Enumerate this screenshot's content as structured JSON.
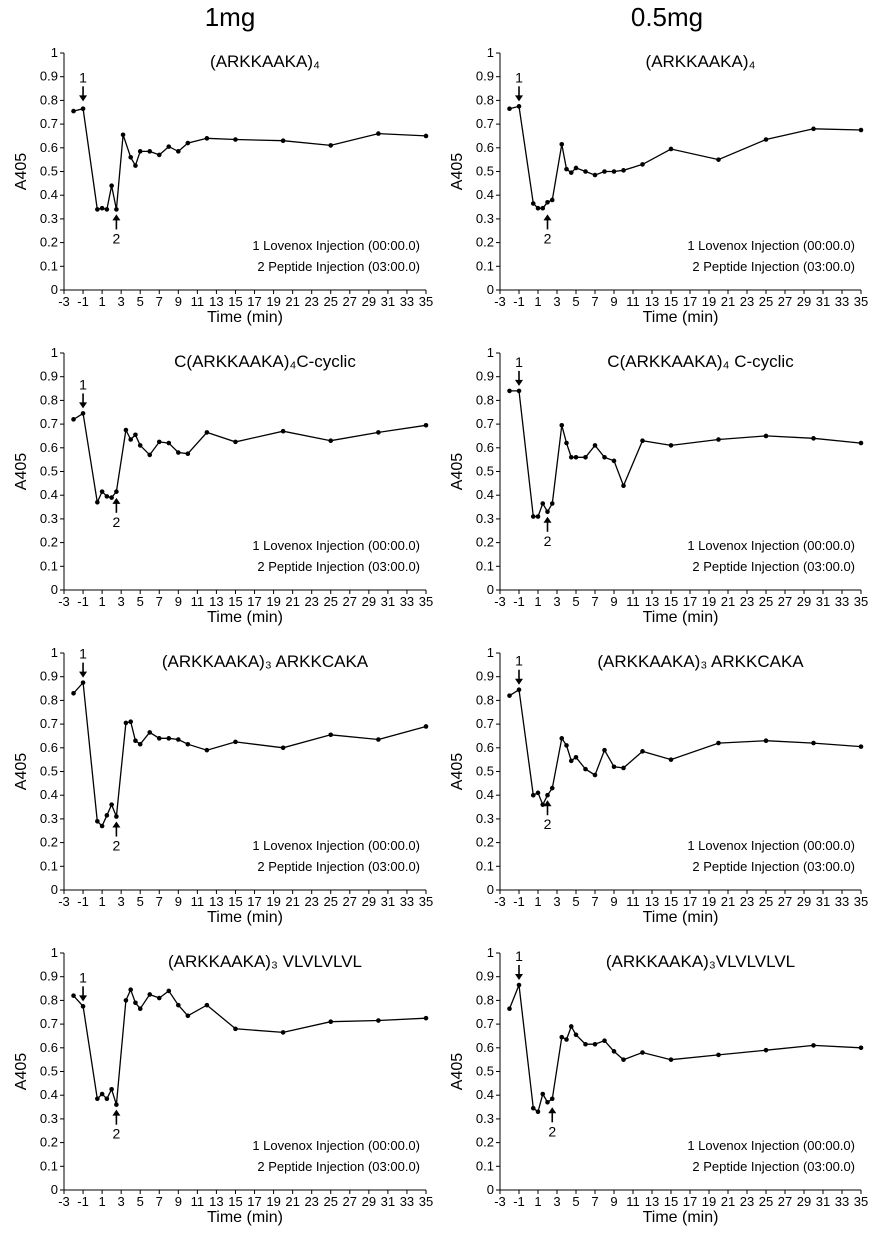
{
  "column_headers": [
    "1mg",
    "0.5mg"
  ],
  "chart_data": [
    {
      "type": "line",
      "title": "(ARKKAAKA)₄",
      "xlabel": "Time (min)",
      "ylabel": "A405",
      "xlim": [
        -3,
        35
      ],
      "ylim": [
        0,
        1.0
      ],
      "x_ticks": [
        -3,
        -1,
        1,
        3,
        5,
        7,
        9,
        11,
        13,
        15,
        17,
        19,
        21,
        23,
        25,
        27,
        29,
        31,
        33,
        35
      ],
      "y_ticks": [
        0,
        0.1,
        0.2,
        0.3,
        0.4,
        0.5,
        0.6,
        0.7,
        0.8,
        0.9,
        1.0
      ],
      "legend": [
        "1 Lovenox Injection (00:00.0)",
        "2 Peptide Injection (03:00.0)"
      ],
      "annotations": [
        {
          "label": "1",
          "x": -1,
          "y": 0.775,
          "direction": "down"
        },
        {
          "label": "2",
          "x": 2.5,
          "y": 0.34,
          "direction": "up"
        }
      ],
      "series": [
        {
          "x": [
            -2,
            -1,
            0.5,
            1,
            1.5,
            2,
            2.5,
            3.2,
            4,
            4.5,
            5,
            6,
            7,
            8,
            9,
            10,
            12,
            15,
            20,
            25,
            30,
            35
          ],
          "y": [
            0.755,
            0.765,
            0.34,
            0.345,
            0.34,
            0.44,
            0.34,
            0.655,
            0.56,
            0.525,
            0.585,
            0.585,
            0.57,
            0.605,
            0.585,
            0.62,
            0.64,
            0.635,
            0.63,
            0.61,
            0.66,
            0.65
          ]
        }
      ]
    },
    {
      "type": "line",
      "title": "(ARKKAAKA)₄",
      "xlabel": "Time (min)",
      "ylabel": "A405",
      "xlim": [
        -3,
        35
      ],
      "ylim": [
        0,
        1.0
      ],
      "x_ticks": [
        -3,
        -1,
        1,
        3,
        5,
        7,
        9,
        11,
        13,
        15,
        17,
        19,
        21,
        23,
        25,
        27,
        29,
        31,
        33,
        35
      ],
      "y_ticks": [
        0,
        0.1,
        0.2,
        0.3,
        0.4,
        0.5,
        0.6,
        0.7,
        0.8,
        0.9,
        1.0
      ],
      "legend": [
        "1 Lovenox Injection (00:00.0)",
        "2 Peptide Injection (03:00.0)"
      ],
      "annotations": [
        {
          "label": "1",
          "x": -1,
          "y": 0.775,
          "direction": "down"
        },
        {
          "label": "2",
          "x": 2,
          "y": 0.34,
          "direction": "up"
        }
      ],
      "series": [
        {
          "x": [
            -2,
            -1,
            0.5,
            1,
            1.5,
            2,
            2.5,
            3.5,
            4,
            4.5,
            5,
            6,
            7,
            8,
            9,
            10,
            12,
            15,
            20,
            25,
            30,
            35
          ],
          "y": [
            0.765,
            0.775,
            0.365,
            0.345,
            0.345,
            0.37,
            0.38,
            0.615,
            0.51,
            0.495,
            0.515,
            0.5,
            0.485,
            0.5,
            0.5,
            0.505,
            0.53,
            0.595,
            0.55,
            0.635,
            0.68,
            0.675
          ]
        }
      ]
    },
    {
      "type": "line",
      "title": "C(ARKKAAKA)₄C-cyclic",
      "xlabel": "Time (min)",
      "ylabel": "A405",
      "xlim": [
        -3,
        35
      ],
      "ylim": [
        0,
        1.0
      ],
      "x_ticks": [
        -3,
        -1,
        1,
        3,
        5,
        7,
        9,
        11,
        13,
        15,
        17,
        19,
        21,
        23,
        25,
        27,
        29,
        31,
        33,
        35
      ],
      "y_ticks": [
        0,
        0.1,
        0.2,
        0.3,
        0.4,
        0.5,
        0.6,
        0.7,
        0.8,
        0.9,
        1.0
      ],
      "legend": [
        "1 Lovenox Injection (00:00.0)",
        "2 Peptide Injection (03:00.0)"
      ],
      "annotations": [
        {
          "label": "1",
          "x": -1,
          "y": 0.745,
          "direction": "down"
        },
        {
          "label": "2",
          "x": 2.5,
          "y": 0.41,
          "direction": "up"
        }
      ],
      "series": [
        {
          "x": [
            -2,
            -1,
            0.5,
            1,
            1.5,
            2,
            2.5,
            3.5,
            4,
            4.5,
            5,
            6,
            7,
            8,
            9,
            10,
            12,
            15,
            20,
            25,
            30,
            35
          ],
          "y": [
            0.72,
            0.745,
            0.37,
            0.415,
            0.395,
            0.39,
            0.415,
            0.675,
            0.635,
            0.655,
            0.61,
            0.57,
            0.625,
            0.62,
            0.58,
            0.575,
            0.665,
            0.625,
            0.67,
            0.63,
            0.665,
            0.695
          ]
        }
      ]
    },
    {
      "type": "line",
      "title": "C(ARKKAAKA)₄ C-cyclic",
      "xlabel": "Time (min)",
      "ylabel": "A405",
      "xlim": [
        -3,
        35
      ],
      "ylim": [
        0,
        1.0
      ],
      "x_ticks": [
        -3,
        -1,
        1,
        3,
        5,
        7,
        9,
        11,
        13,
        15,
        17,
        19,
        21,
        23,
        25,
        27,
        29,
        31,
        33,
        35
      ],
      "y_ticks": [
        0,
        0.1,
        0.2,
        0.3,
        0.4,
        0.5,
        0.6,
        0.7,
        0.8,
        0.9,
        1.0
      ],
      "legend": [
        "1 Lovenox Injection (00:00.0)",
        "2 Peptide Injection (03:00.0)"
      ],
      "annotations": [
        {
          "label": "1",
          "x": -1,
          "y": 0.84,
          "direction": "down"
        },
        {
          "label": "2",
          "x": 2,
          "y": 0.33,
          "direction": "up"
        }
      ],
      "series": [
        {
          "x": [
            -2,
            -1,
            0.5,
            1,
            1.5,
            2,
            2.5,
            3.5,
            4,
            4.5,
            5,
            6,
            7,
            8,
            9,
            10,
            12,
            15,
            20,
            25,
            30,
            35
          ],
          "y": [
            0.84,
            0.84,
            0.31,
            0.31,
            0.365,
            0.33,
            0.365,
            0.695,
            0.62,
            0.56,
            0.56,
            0.56,
            0.61,
            0.56,
            0.545,
            0.44,
            0.63,
            0.61,
            0.635,
            0.65,
            0.64,
            0.62
          ]
        }
      ]
    },
    {
      "type": "line",
      "title": "(ARKKAAKA)₃ ARKKCAKA",
      "xlabel": "Time (min)",
      "ylabel": "A405",
      "xlim": [
        -3,
        35
      ],
      "ylim": [
        0,
        1.0
      ],
      "x_ticks": [
        -3,
        -1,
        1,
        3,
        5,
        7,
        9,
        11,
        13,
        15,
        17,
        19,
        21,
        23,
        25,
        27,
        29,
        31,
        33,
        35
      ],
      "y_ticks": [
        0,
        0.1,
        0.2,
        0.3,
        0.4,
        0.5,
        0.6,
        0.7,
        0.8,
        0.9,
        1.0
      ],
      "legend": [
        "1 Lovenox Injection (00:00.0)",
        "2 Peptide Injection (03:00.0)"
      ],
      "annotations": [
        {
          "label": "1",
          "x": -1,
          "y": 0.875,
          "direction": "down"
        },
        {
          "label": "2",
          "x": 2.5,
          "y": 0.31,
          "direction": "up"
        }
      ],
      "series": [
        {
          "x": [
            -2,
            -1,
            0.5,
            1,
            1.5,
            2,
            2.5,
            3.5,
            4,
            4.5,
            5,
            6,
            7,
            8,
            9,
            10,
            12,
            15,
            20,
            25,
            30,
            35
          ],
          "y": [
            0.83,
            0.875,
            0.29,
            0.27,
            0.315,
            0.36,
            0.31,
            0.705,
            0.71,
            0.63,
            0.615,
            0.665,
            0.64,
            0.64,
            0.635,
            0.615,
            0.59,
            0.625,
            0.6,
            0.655,
            0.635,
            0.69
          ]
        }
      ]
    },
    {
      "type": "line",
      "title": "(ARKKAAKA)₃ ARKKCAKA",
      "xlabel": "Time (min)",
      "ylabel": "A405",
      "xlim": [
        -3,
        35
      ],
      "ylim": [
        0,
        1.0
      ],
      "x_ticks": [
        -3,
        -1,
        1,
        3,
        5,
        7,
        9,
        11,
        13,
        15,
        17,
        19,
        21,
        23,
        25,
        27,
        29,
        31,
        33,
        35
      ],
      "y_ticks": [
        0,
        0.1,
        0.2,
        0.3,
        0.4,
        0.5,
        0.6,
        0.7,
        0.8,
        0.9,
        1.0
      ],
      "legend": [
        "1 Lovenox Injection (00:00.0)",
        "2 Peptide Injection (03:00.0)"
      ],
      "annotations": [
        {
          "label": "1",
          "x": -1,
          "y": 0.845,
          "direction": "down"
        },
        {
          "label": "2",
          "x": 2,
          "y": 0.4,
          "direction": "up"
        }
      ],
      "series": [
        {
          "x": [
            -2,
            -1,
            0.5,
            1,
            1.5,
            2,
            2.5,
            3.5,
            4,
            4.5,
            5,
            6,
            7,
            8,
            9,
            10,
            12,
            15,
            20,
            25,
            30,
            35
          ],
          "y": [
            0.82,
            0.845,
            0.4,
            0.41,
            0.36,
            0.4,
            0.43,
            0.64,
            0.61,
            0.545,
            0.56,
            0.51,
            0.485,
            0.59,
            0.52,
            0.515,
            0.585,
            0.55,
            0.62,
            0.63,
            0.62,
            0.605
          ]
        }
      ]
    },
    {
      "type": "line",
      "title": "(ARKKAAKA)₃ VLVLVLVL",
      "xlabel": "Time (min)",
      "ylabel": "A405",
      "xlim": [
        -3,
        35
      ],
      "ylim": [
        0,
        1.0
      ],
      "x_ticks": [
        -3,
        -1,
        1,
        3,
        5,
        7,
        9,
        11,
        13,
        15,
        17,
        19,
        21,
        23,
        25,
        27,
        29,
        31,
        33,
        35
      ],
      "y_ticks": [
        0,
        0.1,
        0.2,
        0.3,
        0.4,
        0.5,
        0.6,
        0.7,
        0.8,
        0.9,
        1.0
      ],
      "legend": [
        "1 Lovenox Injection (00:00.0)",
        "2 Peptide Injection (03:00.0)"
      ],
      "annotations": [
        {
          "label": "1",
          "x": -1,
          "y": 0.775,
          "direction": "down"
        },
        {
          "label": "2",
          "x": 2.5,
          "y": 0.36,
          "direction": "up"
        }
      ],
      "series": [
        {
          "x": [
            -2,
            -1,
            0.5,
            1,
            1.5,
            2,
            2.5,
            3.5,
            4,
            4.5,
            5,
            6,
            7,
            8,
            9,
            10,
            12,
            15,
            20,
            25,
            30,
            35
          ],
          "y": [
            0.82,
            0.775,
            0.385,
            0.405,
            0.385,
            0.425,
            0.36,
            0.8,
            0.845,
            0.79,
            0.765,
            0.825,
            0.81,
            0.84,
            0.78,
            0.735,
            0.78,
            0.68,
            0.665,
            0.71,
            0.715,
            0.725
          ]
        }
      ]
    },
    {
      "type": "line",
      "title": "(ARKKAAKA)₃VLVLVLVL",
      "xlabel": "Time (min)",
      "ylabel": "A405",
      "xlim": [
        -3,
        35
      ],
      "ylim": [
        0,
        1.0
      ],
      "x_ticks": [
        -3,
        -1,
        1,
        3,
        5,
        7,
        9,
        11,
        13,
        15,
        17,
        19,
        21,
        23,
        25,
        27,
        29,
        31,
        33,
        35
      ],
      "y_ticks": [
        0,
        0.1,
        0.2,
        0.3,
        0.4,
        0.5,
        0.6,
        0.7,
        0.8,
        0.9,
        1.0
      ],
      "legend": [
        "1 Lovenox Injection (00:00.0)",
        "2 Peptide Injection (03:00.0)"
      ],
      "annotations": [
        {
          "label": "1",
          "x": -1,
          "y": 0.865,
          "direction": "down"
        },
        {
          "label": "2",
          "x": 2.5,
          "y": 0.37,
          "direction": "up"
        }
      ],
      "series": [
        {
          "x": [
            -2,
            -1,
            0.5,
            1,
            1.5,
            2,
            2.5,
            3.5,
            4,
            4.5,
            5,
            6,
            7,
            8,
            9,
            10,
            12,
            15,
            20,
            25,
            30,
            35
          ],
          "y": [
            0.765,
            0.865,
            0.345,
            0.33,
            0.405,
            0.37,
            0.385,
            0.645,
            0.635,
            0.69,
            0.655,
            0.615,
            0.615,
            0.63,
            0.585,
            0.55,
            0.58,
            0.55,
            0.57,
            0.59,
            0.61,
            0.6
          ]
        }
      ]
    }
  ]
}
